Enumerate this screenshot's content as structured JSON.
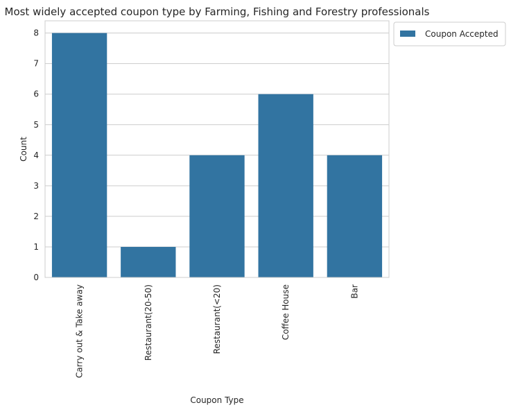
{
  "chart_data": {
    "type": "bar",
    "title": "Most widely accepted coupon type by Farming, Fishing and Forestry professionals",
    "xlabel": "Coupon Type",
    "ylabel": "Count",
    "categories": [
      "Carry out & Take away",
      "Restaurant(20-50)",
      "Restaurant(<20)",
      "Coffee House",
      "Bar"
    ],
    "series": [
      {
        "name": "Coupon Accepted",
        "values": [
          8,
          1,
          4,
          6,
          4
        ]
      }
    ],
    "ylim": [
      0,
      8.4
    ],
    "yticks": [
      0,
      1,
      2,
      3,
      4,
      5,
      6,
      7,
      8
    ],
    "grid": true,
    "legend_position": "outside-top-right",
    "colors": {
      "bar": "#3274a1",
      "grid": "#cccccc",
      "axes": "#cccccc"
    }
  }
}
